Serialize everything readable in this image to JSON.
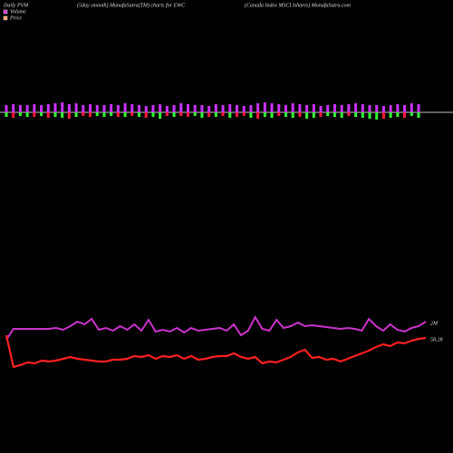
{
  "chart_data": {
    "type": "pvm",
    "title": "Daily PVM",
    "subtitle": "(5day smooth) MunafaSutra(TM) charts for EWC",
    "source": "(Canada Index MSCI Ishares) MunafaSutra.com",
    "legend": [
      "Volume",
      "Price"
    ],
    "legend_colors": [
      "#cc33cc",
      "#ff9966"
    ],
    "bars": {
      "up_color": "#cc33ff",
      "up": [
        8,
        9,
        8,
        8,
        9,
        8,
        9,
        10,
        11,
        9,
        10,
        8,
        9,
        8,
        8,
        9,
        8,
        10,
        9,
        8,
        7,
        8,
        9,
        7,
        8,
        10,
        9,
        8,
        8,
        7,
        9,
        8,
        9,
        8,
        7,
        8,
        10,
        11,
        10,
        9,
        8,
        10,
        9,
        8,
        9,
        7,
        8,
        9,
        8,
        9,
        10,
        9,
        8,
        8,
        7,
        8,
        9,
        8,
        10,
        9
      ],
      "down": [
        5,
        6,
        4,
        5,
        5,
        4,
        6,
        5,
        6,
        7,
        5,
        4,
        5,
        4,
        5,
        4,
        5,
        5,
        4,
        5,
        6,
        5,
        7,
        4,
        5,
        4,
        5,
        4,
        6,
        5,
        5,
        4,
        6,
        5,
        4,
        6,
        7,
        5,
        6,
        4,
        5,
        6,
        5,
        7,
        6,
        5,
        4,
        5,
        6,
        4,
        5,
        6,
        7,
        8,
        7,
        6,
        5,
        6,
        4,
        6
      ],
      "down_colors": [
        "#33ff33",
        "#ff1a3c",
        "#33ff33",
        "#33ff33",
        "#ff1a3c",
        "#33ff33",
        "#ff1a3c",
        "#33ff33",
        "#33ff33",
        "#ff1a3c",
        "#33ff33",
        "#ff1a3c",
        "#ff1a3c",
        "#33ff33",
        "#33ff33",
        "#33ff33",
        "#ff1a3c",
        "#33ff33",
        "#ff1a3c",
        "#33ff33",
        "#ff1a3c",
        "#33ff33",
        "#33ff33",
        "#ff1a3c",
        "#33ff33",
        "#ff1a3c",
        "#ff1a3c",
        "#33ff33",
        "#33ff33",
        "#ff1a3c",
        "#33ff33",
        "#ff1a3c",
        "#33ff33",
        "#ff1a3c",
        "#ff1a3c",
        "#33ff33",
        "#ff1a3c",
        "#33ff33",
        "#33ff33",
        "#ff1a3c",
        "#33ff33",
        "#33ff33",
        "#ff1a3c",
        "#33ff33",
        "#33ff33",
        "#ff1a3c",
        "#33ff33",
        "#33ff33",
        "#33ff33",
        "#ff1a3c",
        "#33ff33",
        "#33ff33",
        "#33ff33",
        "#33ff33",
        "#ff1a3c",
        "#33ff33",
        "#33ff33",
        "#ff1a3c",
        "#33ff33",
        "#33ff33"
      ],
      "ylim": [
        -15,
        15
      ]
    },
    "volume_line": {
      "color": "#cc33cc",
      "label": "2M",
      "ylim": [
        0,
        100
      ],
      "values": [
        25,
        37,
        37,
        37,
        37,
        37,
        37,
        38,
        36,
        40,
        45,
        42,
        48,
        36,
        38,
        35,
        40,
        36,
        42,
        35,
        47,
        34,
        36,
        34,
        38,
        33,
        38,
        35,
        36,
        37,
        38,
        35,
        42,
        30,
        35,
        50,
        37,
        35,
        47,
        38,
        40,
        44,
        40,
        41,
        40,
        39,
        38,
        37,
        38,
        37,
        35,
        48,
        40,
        35,
        42,
        36,
        34,
        38,
        40,
        45
      ]
    },
    "price_line": {
      "color": "#ff2020",
      "label": "58.28",
      "ylim": [
        0,
        100
      ],
      "values": [
        40,
        5,
        7,
        10,
        9,
        12,
        11,
        12,
        14,
        16,
        14,
        13,
        12,
        11,
        11,
        13,
        13,
        14,
        17,
        16,
        18,
        14,
        17,
        16,
        18,
        14,
        17,
        13,
        14,
        16,
        17,
        17,
        20,
        16,
        14,
        16,
        9,
        11,
        10,
        13,
        16,
        21,
        24,
        15,
        16,
        13,
        14,
        11,
        14,
        17,
        20,
        23,
        27,
        30,
        28,
        32,
        31,
        34,
        36,
        37
      ]
    }
  }
}
